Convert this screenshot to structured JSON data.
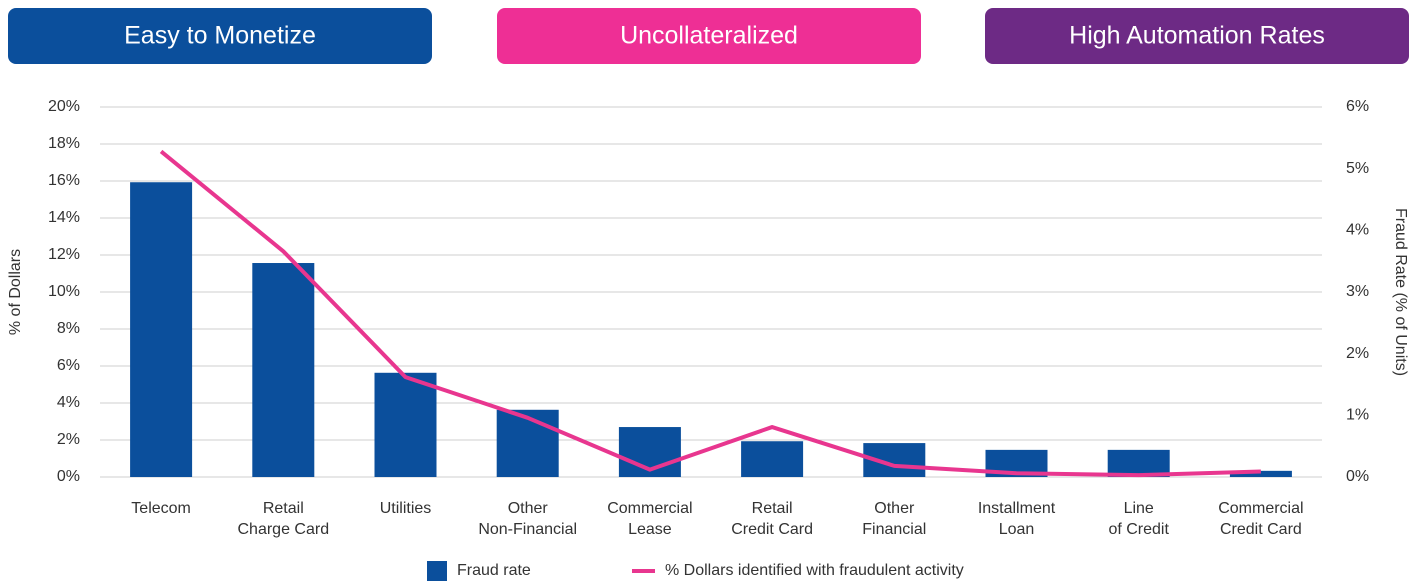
{
  "banners": [
    {
      "text": "Easy to Monetize",
      "color": "#0b4f9c"
    },
    {
      "text": "Uncollateralized",
      "color": "#ee2f95"
    },
    {
      "text": "High Automation Rates",
      "color": "#6d2a85"
    }
  ],
  "chart_data": {
    "type": "bar",
    "y_label": "% of Dollars",
    "y2_label": "Fraud Rate (% of Units)",
    "categories": [
      [
        "Telecom"
      ],
      [
        "Retail",
        "Charge Card"
      ],
      [
        "Utilities"
      ],
      [
        "Other",
        "Non-Financial"
      ],
      [
        "Commercial",
        "Lease"
      ],
      [
        "Retail",
        "Credit Card"
      ],
      [
        "Other",
        "Financial"
      ],
      [
        "Installment",
        "Loan"
      ],
      [
        "Line",
        "of Credit"
      ],
      [
        "Commercial",
        "Credit Card"
      ]
    ],
    "series": [
      {
        "name": "Fraud rate",
        "type": "bar",
        "axis": "y2",
        "color": "#0b4f9c",
        "values": [
          4.78,
          3.47,
          1.69,
          1.09,
          0.81,
          0.58,
          0.55,
          0.44,
          0.44,
          0.1
        ]
      },
      {
        "name": "% Dollars identified with fraudulent activity",
        "type": "line",
        "axis": "y",
        "color": "#e8368f",
        "values": [
          17.6,
          12.2,
          5.4,
          3.2,
          0.4,
          2.7,
          0.6,
          0.2,
          0.1,
          0.3
        ]
      }
    ],
    "ylim": [
      0,
      20
    ],
    "yticks": [
      {
        "value": 0,
        "label": "0%"
      },
      {
        "value": 2,
        "label": "2%"
      },
      {
        "value": 4,
        "label": "4%"
      },
      {
        "value": 6,
        "label": "6%"
      },
      {
        "value": 8,
        "label": "8%"
      },
      {
        "value": 10,
        "label": "10%"
      },
      {
        "value": 12,
        "label": "12%"
      },
      {
        "value": 14,
        "label": "14%"
      },
      {
        "value": 16,
        "label": "16%"
      },
      {
        "value": 18,
        "label": "18%"
      },
      {
        "value": 20,
        "label": "20%"
      }
    ],
    "y2lim": [
      0,
      6
    ],
    "y2ticks": [
      {
        "value": 0,
        "label": "0%"
      },
      {
        "value": 1,
        "label": "1%"
      },
      {
        "value": 2,
        "label": "2%"
      },
      {
        "value": 3,
        "label": "3%"
      },
      {
        "value": 4,
        "label": "4%"
      },
      {
        "value": 5,
        "label": "5%"
      },
      {
        "value": 6,
        "label": "6%"
      }
    ],
    "grid": true,
    "legend": "bottom"
  }
}
